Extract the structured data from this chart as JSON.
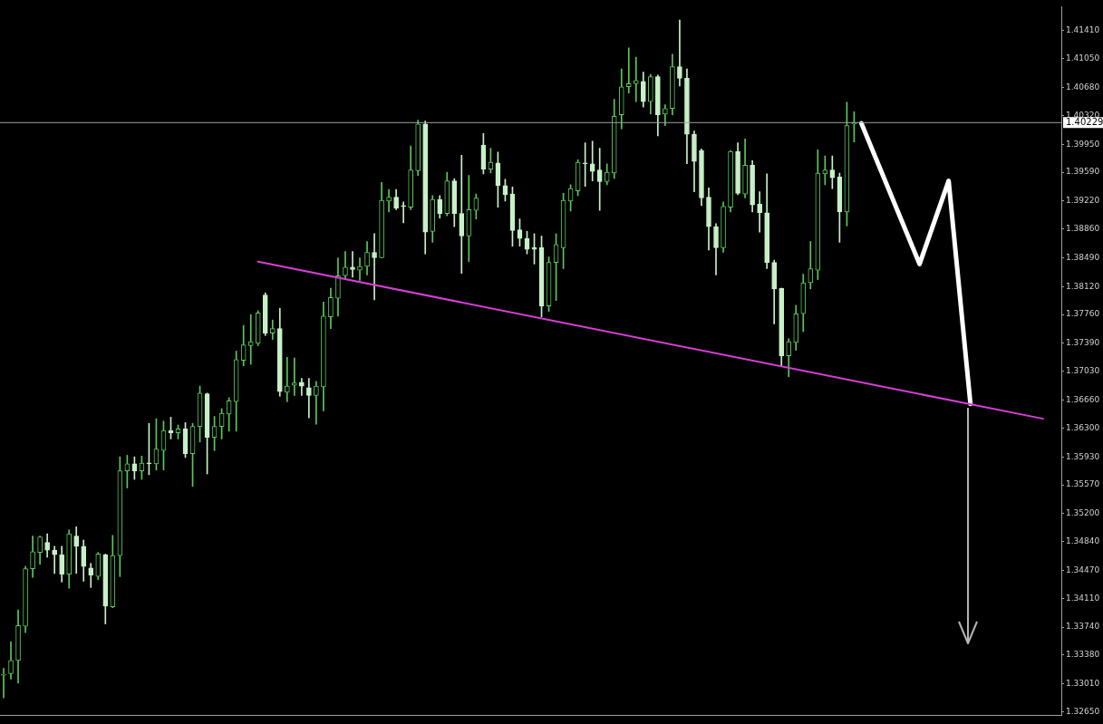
{
  "chart_data": {
    "type": "candlestick",
    "categories": [
      null,
      null,
      null,
      null,
      null,
      null,
      null,
      null,
      null,
      null,
      null,
      null,
      null,
      null,
      null,
      null,
      null,
      null,
      null,
      null,
      null,
      null,
      null,
      null,
      null,
      null,
      null,
      null,
      null,
      null,
      null,
      null,
      null,
      null,
      null,
      null,
      null,
      null,
      null,
      null,
      null,
      null,
      null,
      null,
      null,
      null,
      null,
      null,
      null,
      null,
      null,
      null,
      null,
      null,
      null,
      null,
      null,
      null,
      null,
      null,
      null,
      null,
      null,
      null,
      null,
      null,
      null,
      null,
      null,
      null,
      null,
      null,
      null,
      null,
      null,
      null,
      null,
      null,
      null,
      null,
      null,
      null,
      null,
      null,
      null,
      null,
      null,
      null,
      null,
      null,
      null,
      null,
      null,
      null,
      null,
      null,
      null,
      null,
      null,
      null,
      null,
      null,
      null,
      null,
      null,
      null,
      null,
      null,
      null,
      null,
      null,
      null,
      null,
      null,
      null,
      null,
      null,
      null,
      null,
      null,
      null,
      null,
      null,
      null,
      null,
      null,
      null,
      null,
      null,
      null,
      null,
      null,
      null,
      null,
      null,
      null,
      null,
      null,
      null,
      null,
      null,
      null,
      null,
      null,
      null,
      null
    ],
    "series": [
      {
        "type": "candlestick",
        "color": "#7cdb7c",
        "colors": [
          "#5cc85c",
          "#5cc85c",
          "#5cc85c",
          "#5cc85c",
          "#5cc85c",
          "#5cc85c",
          "#c8f0c8",
          "#c8f0c8",
          "#c8f0c8",
          "#5cc85c",
          "#c8f0c8",
          "#c8f0c8",
          "#c8f0c8",
          "#5cc85c",
          "#c8f0c8",
          "#5cc85c",
          "#5cc85c",
          "#5cc85c",
          "#c8f0c8",
          "#5cc85c",
          "#c8f0c8",
          "#5cc85c",
          "#5cc85c",
          "#c8f0c8",
          "#5cc85c",
          "#c8f0c8",
          "#5cc85c",
          "#5cc85c",
          "#c8f0c8",
          "#5cc85c",
          "#5cc85c",
          "#5cc85c",
          "#5cc85c",
          "#5cc85c",
          "#5cc85c",
          "#5cc85c",
          "#c8f0c8",
          "#5cc85c",
          "#c8f0c8",
          "#5cc85c",
          "#5cc85c",
          "#c8f0c8",
          "#c8f0c8",
          "#5cc85c",
          "#5cc85c",
          "#5cc85c",
          "#5cc85c",
          "#5cc85c",
          "#c8f0c8",
          "#5cc85c",
          "#5cc85c",
          "#c8f0c8",
          "#5cc85c",
          "#5cc85c",
          "#c8f0c8",
          "#c8f0c8",
          "#5cc85c",
          "#5cc85c",
          "#c8f0c8",
          "#5cc85c",
          "#c8f0c8",
          "#5cc85c",
          "#c8f0c8",
          "#c8f0c8",
          "#5cc85c",
          "#5cc85c",
          "#c8f0c8",
          "#5cc85c",
          "#c8f0c8",
          "#c8f0c8",
          "#c8f0c8",
          "#c8f0c8",
          "#c8f0c8",
          "#c8f0c8",
          "#c8f0c8",
          "#5cc85c",
          "#5cc85c",
          "#5cc85c",
          "#5cc85c",
          "#5cc85c",
          "#c8f0c8",
          "#c8f0c8",
          "#c8f0c8",
          "#5cc85c",
          "#5cc85c",
          "#5cc85c",
          "#5cc85c",
          "#5cc85c",
          "#c8f0c8",
          "#5cc85c",
          "#c8f0c8",
          "#5cc85c",
          "#5cc85c",
          "#c8f0c8",
          "#c8f0c8",
          "#c8f0c8",
          "#c8f0c8",
          "#c8f0c8",
          "#c8f0c8",
          "#5cc85c",
          "#5cc85c",
          "#c8f0c8",
          "#5cc85c",
          "#c8f0c8",
          "#c8f0c8",
          "#c8f0c8",
          "#c8f0c8",
          "#c8f0c8",
          "#5cc85c",
          "#5cc85c",
          "#5cc85c",
          "#5cc85c",
          "#5cc85c",
          "#5cc85c",
          "#c8f0c8",
          "#c8f0c8",
          "#5cc85c",
          "#5cc85c",
          null,
          null,
          null,
          null,
          null,
          null,
          null,
          null,
          null,
          null,
          null,
          null,
          null,
          null,
          null,
          null,
          null,
          null,
          null,
          null,
          null,
          null,
          null,
          null,
          null,
          null,
          null,
          null
        ],
        "ohlc": [
          [
            1.3312,
            1.3321,
            1.3283,
            1.3313
          ],
          [
            1.3314,
            1.3355,
            1.3307,
            1.3331
          ],
          [
            1.3331,
            1.3396,
            1.3302,
            1.3376
          ],
          [
            1.3375,
            1.3452,
            1.3367,
            1.3449
          ],
          [
            1.3449,
            1.3491,
            1.3438,
            1.3471
          ],
          [
            1.347,
            1.3491,
            1.3455,
            1.349
          ],
          [
            1.3483,
            1.3494,
            1.3464,
            1.3473
          ],
          [
            1.3473,
            1.3478,
            1.3443,
            1.3467
          ],
          [
            1.3467,
            1.3478,
            1.3432,
            1.3442
          ],
          [
            1.3442,
            1.3499,
            1.3424,
            1.3494
          ],
          [
            1.3491,
            1.3503,
            1.3443,
            1.3478
          ],
          [
            1.3478,
            1.3486,
            1.3433,
            1.3452
          ],
          [
            1.345,
            1.3456,
            1.3425,
            1.3441
          ],
          [
            1.3439,
            1.347,
            1.3435,
            1.3468
          ],
          [
            1.3467,
            1.3468,
            1.3378,
            1.3401
          ],
          [
            1.34,
            1.3492,
            1.3399,
            1.3466
          ],
          [
            1.3466,
            1.3593,
            1.3439,
            1.3575
          ],
          [
            1.3575,
            1.3595,
            1.3553,
            1.3584
          ],
          [
            1.3584,
            1.3593,
            1.3564,
            1.3575
          ],
          [
            1.3575,
            1.3594,
            1.3564,
            1.3585
          ],
          [
            1.3585,
            1.3636,
            1.357,
            1.3584
          ],
          [
            1.3584,
            1.3642,
            1.3576,
            1.3603
          ],
          [
            1.3601,
            1.3639,
            1.3576,
            1.3627
          ],
          [
            1.3627,
            1.3644,
            1.3616,
            1.3624
          ],
          [
            1.3624,
            1.3634,
            1.3616,
            1.3629
          ],
          [
            1.3629,
            1.3637,
            1.3592,
            1.3597
          ],
          [
            1.3597,
            1.3636,
            1.3555,
            1.3632
          ],
          [
            1.3632,
            1.3684,
            1.3612,
            1.3675
          ],
          [
            1.3674,
            1.3675,
            1.3571,
            1.3618
          ],
          [
            1.3618,
            1.3645,
            1.3601,
            1.3632
          ],
          [
            1.3632,
            1.3655,
            1.3616,
            1.3649
          ],
          [
            1.3648,
            1.3669,
            1.3626,
            1.3665
          ],
          [
            1.3664,
            1.3729,
            1.3626,
            1.3718
          ],
          [
            1.3717,
            1.3762,
            1.371,
            1.3737
          ],
          [
            1.3736,
            1.3776,
            1.3712,
            1.3741
          ],
          [
            1.3739,
            1.3781,
            1.3736,
            1.3778
          ],
          [
            1.3801,
            1.3804,
            1.3749,
            1.3752
          ],
          [
            1.3752,
            1.3769,
            1.3744,
            1.3758
          ],
          [
            1.3758,
            1.3784,
            1.3671,
            1.3677
          ],
          [
            1.3676,
            1.3721,
            1.3664,
            1.3684
          ],
          [
            1.3685,
            1.372,
            1.3672,
            1.3688
          ],
          [
            1.3689,
            1.3694,
            1.3672,
            1.3684
          ],
          [
            1.3682,
            1.3694,
            1.3643,
            1.3672
          ],
          [
            1.3672,
            1.369,
            1.3635,
            1.3684
          ],
          [
            1.3683,
            1.3792,
            1.3652,
            1.3774
          ],
          [
            1.3773,
            1.381,
            1.3758,
            1.3798
          ],
          [
            1.3797,
            1.3849,
            1.3774,
            1.3826
          ],
          [
            1.3826,
            1.3857,
            1.3821,
            1.3837
          ],
          [
            1.3837,
            1.3857,
            1.3824,
            1.3834
          ],
          [
            1.3833,
            1.3849,
            1.382,
            1.3838
          ],
          [
            1.3838,
            1.387,
            1.3827,
            1.3856
          ],
          [
            1.3856,
            1.388,
            1.3795,
            1.3849
          ],
          [
            1.3849,
            1.3946,
            1.3849,
            1.3923
          ],
          [
            1.3922,
            1.3937,
            1.3908,
            1.3927
          ],
          [
            1.3927,
            1.3937,
            1.3911,
            1.3913
          ],
          [
            1.3916,
            1.3921,
            1.3894,
            1.3915
          ],
          [
            1.3914,
            1.3993,
            1.3911,
            1.3962
          ],
          [
            1.3961,
            1.4026,
            1.3955,
            1.4021
          ],
          [
            1.4021,
            1.4025,
            1.3854,
            1.3882
          ],
          [
            1.3883,
            1.3929,
            1.3869,
            1.3924
          ],
          [
            1.3924,
            1.3929,
            1.39,
            1.3906
          ],
          [
            1.3906,
            1.3959,
            1.3903,
            1.3948
          ],
          [
            1.3948,
            1.3951,
            1.3889,
            1.3906
          ],
          [
            1.3906,
            1.3981,
            1.3829,
            1.3877
          ],
          [
            1.3877,
            1.3955,
            1.3844,
            1.3911
          ],
          [
            1.391,
            1.3931,
            1.3899,
            1.3926
          ],
          [
            1.3994,
            1.4009,
            1.3957,
            1.3963
          ],
          [
            1.3963,
            1.399,
            1.3958,
            1.3972
          ],
          [
            1.3971,
            1.3985,
            1.3914,
            1.3942
          ],
          [
            1.3942,
            1.395,
            1.3922,
            1.393
          ],
          [
            1.3931,
            1.394,
            1.3864,
            1.3884
          ],
          [
            1.3885,
            1.3899,
            1.3864,
            1.3874
          ],
          [
            1.3874,
            1.3883,
            1.3854,
            1.386
          ],
          [
            1.3862,
            1.388,
            1.3841,
            1.386
          ],
          [
            1.3862,
            1.3877,
            1.3773,
            1.3787
          ],
          [
            1.3787,
            1.385,
            1.378,
            1.3843
          ],
          [
            1.3843,
            1.388,
            1.3794,
            1.3866
          ],
          [
            1.3862,
            1.3932,
            1.3835,
            1.3923
          ],
          [
            1.3922,
            1.3943,
            1.3909,
            1.3938
          ],
          [
            1.3935,
            1.3975,
            1.3929,
            1.3972
          ],
          [
            1.3971,
            1.3997,
            1.3941,
            1.397
          ],
          [
            1.397,
            1.3999,
            1.3948,
            1.396
          ],
          [
            1.3962,
            1.399,
            1.391,
            1.3947
          ],
          [
            1.3947,
            1.397,
            1.3943,
            1.3959
          ],
          [
            1.3958,
            1.4053,
            1.3951,
            1.4031
          ],
          [
            1.4033,
            1.4092,
            1.4015,
            1.4069
          ],
          [
            1.4069,
            1.4119,
            1.4061,
            1.4073
          ],
          [
            1.4073,
            1.4107,
            1.405,
            1.4077
          ],
          [
            1.4076,
            1.4088,
            1.4043,
            1.405
          ],
          [
            1.405,
            1.4085,
            1.4034,
            1.4082
          ],
          [
            1.4082,
            1.4084,
            1.4006,
            1.4033
          ],
          [
            1.4034,
            1.4046,
            1.4019,
            1.4041
          ],
          [
            1.4041,
            1.4111,
            1.4033,
            1.4095
          ],
          [
            1.4095,
            1.4155,
            1.407,
            1.408
          ],
          [
            1.408,
            1.4092,
            1.397,
            1.4008
          ],
          [
            1.4008,
            1.4012,
            1.3934,
            1.3973
          ],
          [
            1.3987,
            1.3989,
            1.3916,
            1.3926
          ],
          [
            1.3927,
            1.3939,
            1.3859,
            1.3889
          ],
          [
            1.3889,
            1.3893,
            1.3827,
            1.3862
          ],
          [
            1.3862,
            1.3921,
            1.3856,
            1.3915
          ],
          [
            1.3914,
            1.3987,
            1.3908,
            1.3986
          ],
          [
            1.3986,
            1.3997,
            1.393,
            1.3932
          ],
          [
            1.3931,
            1.4002,
            1.3926,
            1.3968
          ],
          [
            1.3968,
            1.3974,
            1.3908,
            1.3917
          ],
          [
            1.3918,
            1.3934,
            1.3882,
            1.3907
          ],
          [
            1.3907,
            1.3957,
            1.3835,
            1.3843
          ],
          [
            1.3843,
            1.3846,
            1.3764,
            1.3809
          ],
          [
            1.381,
            1.381,
            1.371,
            1.3723
          ],
          [
            1.3723,
            1.3745,
            1.3696,
            1.3741
          ],
          [
            1.374,
            1.3788,
            1.373,
            1.3777
          ],
          [
            1.3777,
            1.3828,
            1.3754,
            1.3817
          ],
          [
            1.3817,
            1.387,
            1.3809,
            1.3835
          ],
          [
            1.3833,
            1.3988,
            1.3821,
            1.3958
          ],
          [
            1.3957,
            1.398,
            1.3943,
            1.3962
          ],
          [
            1.3962,
            1.398,
            1.3938,
            1.3952
          ],
          [
            1.3953,
            1.3958,
            1.3869,
            1.3908
          ],
          [
            1.3908,
            1.4049,
            1.389,
            1.4019
          ],
          [
            1.4021,
            1.4037,
            1.3998,
            1.40229
          ],
          null,
          null,
          null,
          null,
          null,
          null,
          null,
          null,
          null,
          null,
          null,
          null,
          null,
          null,
          null,
          null,
          null,
          null,
          null,
          null,
          null,
          null,
          null,
          null,
          null,
          null,
          null,
          null
        ]
      },
      {
        "type": "line",
        "color": "#d63fd6",
        "values": [
          null,
          null,
          null,
          null,
          null,
          null,
          null,
          null,
          null,
          null,
          null,
          null,
          null,
          null,
          null,
          null,
          null,
          null,
          null,
          null,
          null,
          null,
          null,
          null,
          null,
          null,
          null,
          null,
          null,
          null,
          null,
          null,
          null,
          null,
          null,
          1.3844,
          null,
          null,
          null,
          null,
          null,
          null,
          null,
          null,
          null,
          null,
          null,
          null,
          null,
          null,
          null,
          null,
          null,
          null,
          null,
          null,
          null,
          null,
          null,
          null,
          null,
          null,
          null,
          null,
          null,
          null,
          null,
          null,
          null,
          null,
          null,
          null,
          null,
          null,
          null,
          null,
          null,
          null,
          null,
          null,
          null,
          null,
          null,
          null,
          null,
          null,
          null,
          null,
          null,
          null,
          null,
          null,
          null,
          null,
          null,
          null,
          null,
          null,
          null,
          null,
          null,
          null,
          null,
          null,
          null,
          null,
          null,
          null,
          null,
          null,
          null,
          null,
          null,
          null,
          null,
          null,
          null,
          null,
          null,
          null,
          null,
          null,
          null,
          null,
          null,
          null,
          null,
          null,
          null,
          null,
          null,
          null,
          null,
          null,
          null,
          null,
          null,
          null,
          null,
          null,
          null,
          null,
          null,
          1.3642,
          null,
          null
        ]
      },
      {
        "type": "line",
        "color": "#ffffff",
        "values": [
          null,
          null,
          null,
          null,
          null,
          null,
          null,
          null,
          null,
          null,
          null,
          null,
          null,
          null,
          null,
          null,
          null,
          null,
          null,
          null,
          null,
          null,
          null,
          null,
          null,
          null,
          null,
          null,
          null,
          null,
          null,
          null,
          null,
          null,
          null,
          null,
          null,
          null,
          null,
          null,
          null,
          null,
          null,
          null,
          null,
          null,
          null,
          null,
          null,
          null,
          null,
          null,
          null,
          null,
          null,
          null,
          null,
          null,
          null,
          null,
          null,
          null,
          null,
          null,
          null,
          null,
          null,
          null,
          null,
          null,
          null,
          null,
          null,
          null,
          null,
          null,
          null,
          null,
          null,
          null,
          null,
          null,
          null,
          null,
          null,
          null,
          null,
          null,
          null,
          null,
          null,
          null,
          null,
          null,
          null,
          null,
          null,
          null,
          null,
          null,
          null,
          null,
          null,
          null,
          null,
          null,
          null,
          null,
          null,
          null,
          null,
          null,
          null,
          null,
          null,
          null,
          null,
          null,
          1.4022,
          null,
          null,
          null,
          null,
          null,
          null,
          null,
          1.3841,
          null,
          null,
          null,
          1.3948,
          null,
          null,
          1.3661,
          null,
          null,
          null,
          null,
          null,
          null,
          null,
          null,
          null,
          null,
          null,
          null
        ]
      }
    ],
    "ylim": [
      1.3261,
      1.4172
    ],
    "yticks": [
      {
        "value": 1.3265,
        "label": "1.32650"
      },
      {
        "value": 1.3301,
        "label": "1.33010"
      },
      {
        "value": 1.3338,
        "label": "1.33380"
      },
      {
        "value": 1.3374,
        "label": "1.33740"
      },
      {
        "value": 1.3411,
        "label": "1.34110"
      },
      {
        "value": 1.3447,
        "label": "1.34470"
      },
      {
        "value": 1.3484,
        "label": "1.34840"
      },
      {
        "value": 1.352,
        "label": "1.35200"
      },
      {
        "value": 1.3557,
        "label": "1.35570"
      },
      {
        "value": 1.3593,
        "label": "1.35930"
      },
      {
        "value": 1.363,
        "label": "1.36300"
      },
      {
        "value": 1.3666,
        "label": "1.36660"
      },
      {
        "value": 1.3703,
        "label": "1.37030"
      },
      {
        "value": 1.3739,
        "label": "1.37390"
      },
      {
        "value": 1.3776,
        "label": "1.37760"
      },
      {
        "value": 1.3812,
        "label": "1.38120"
      },
      {
        "value": 1.3849,
        "label": "1.38490"
      },
      {
        "value": 1.3886,
        "label": "1.38860"
      },
      {
        "value": 1.3922,
        "label": "1.39220"
      },
      {
        "value": 1.3959,
        "label": "1.39590"
      },
      {
        "value": 1.3995,
        "label": "1.39950"
      },
      {
        "value": 1.4032,
        "label": "1.40320"
      },
      {
        "value": 1.4068,
        "label": "1.40680"
      },
      {
        "value": 1.4105,
        "label": "1.41050"
      },
      {
        "value": 1.4141,
        "label": "1.41410"
      }
    ],
    "ref_lines": [
      {
        "axis": "y",
        "value": 1.40229,
        "label": "1.40229",
        "color": "#a0a0a0"
      }
    ],
    "tick_labels": "y"
  }
}
